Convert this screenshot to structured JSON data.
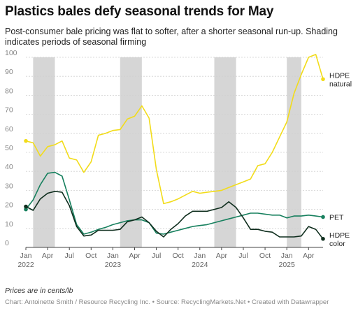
{
  "title": "Plastics bales defy seasonal trends for May",
  "subtitle": "Post-consumer bale pricing was flat to softer, after a shorter seasonal run-up. Shading indicates periods of seasonal firming",
  "note": "Prices are in cents/lb",
  "source": "Chart: Antoinette Smith / Resource Recycling Inc. • Source: RecyclingMarkets.Net • Created with Datawrapper",
  "chart_data": {
    "type": "line",
    "ylim": [
      0,
      100
    ],
    "yticks": [
      0,
      10,
      20,
      30,
      40,
      50,
      60,
      70,
      80,
      90,
      100
    ],
    "xlim": [
      "2022-01",
      "2025-05"
    ],
    "xticks": [
      {
        "date": "2022-01",
        "label": "Jan",
        "year": "2022"
      },
      {
        "date": "2022-04",
        "label": "Apr",
        "year": ""
      },
      {
        "date": "2022-07",
        "label": "Jul",
        "year": ""
      },
      {
        "date": "2022-10",
        "label": "Oct",
        "year": ""
      },
      {
        "date": "2023-01",
        "label": "Jan",
        "year": "2023"
      },
      {
        "date": "2023-04",
        "label": "Apr",
        "year": ""
      },
      {
        "date": "2023-07",
        "label": "Jul",
        "year": ""
      },
      {
        "date": "2023-10",
        "label": "Oct",
        "year": ""
      },
      {
        "date": "2024-01",
        "label": "Jan",
        "year": "2024"
      },
      {
        "date": "2024-04",
        "label": "Apr",
        "year": ""
      },
      {
        "date": "2024-07",
        "label": "Jul",
        "year": ""
      },
      {
        "date": "2024-10",
        "label": "Oct",
        "year": ""
      },
      {
        "date": "2025-01",
        "label": "Jan",
        "year": "2025"
      },
      {
        "date": "2025-04",
        "label": "Apr",
        "year": ""
      }
    ],
    "shaded_periods": [
      [
        "2022-02",
        "2022-05"
      ],
      [
        "2023-02",
        "2023-05"
      ],
      [
        "2024-03",
        "2024-06"
      ],
      [
        "2025-01",
        "2025-03"
      ]
    ],
    "grid": true,
    "series": [
      {
        "name": "HDPE natural",
        "label_lines": [
          "HDPE",
          "natural"
        ],
        "color": "#f2dc1a",
        "points": [
          [
            "2022-01",
            56
          ],
          [
            "2022-02",
            55
          ],
          [
            "2022-03",
            48
          ],
          [
            "2022-04",
            53
          ],
          [
            "2022-05",
            54
          ],
          [
            "2022-06",
            56
          ],
          [
            "2022-07",
            47
          ],
          [
            "2022-08",
            46
          ],
          [
            "2022-09",
            39.5
          ],
          [
            "2022-10",
            45
          ],
          [
            "2022-11",
            59
          ],
          [
            "2022-12",
            60
          ],
          [
            "2023-01",
            61.5
          ],
          [
            "2023-02",
            62
          ],
          [
            "2023-03",
            67.5
          ],
          [
            "2023-04",
            69
          ],
          [
            "2023-05",
            74.5
          ],
          [
            "2023-06",
            68
          ],
          [
            "2023-07",
            41
          ],
          [
            "2023-08",
            23
          ],
          [
            "2023-09",
            24
          ],
          [
            "2023-10",
            25.5
          ],
          [
            "2023-11",
            27.5
          ],
          [
            "2023-12",
            29.5
          ],
          [
            "2024-01",
            28.5
          ],
          [
            "2024-02",
            29
          ],
          [
            "2024-03",
            29.5
          ],
          [
            "2024-04",
            30
          ],
          [
            "2024-05",
            31.5
          ],
          [
            "2024-06",
            33
          ],
          [
            "2024-07",
            34.5
          ],
          [
            "2024-08",
            36
          ],
          [
            "2024-09",
            43
          ],
          [
            "2024-10",
            44
          ],
          [
            "2024-11",
            50
          ],
          [
            "2024-12",
            58
          ],
          [
            "2025-01",
            66
          ],
          [
            "2025-02",
            81
          ],
          [
            "2025-03",
            91
          ],
          [
            "2025-04",
            100
          ],
          [
            "2025-05",
            101.5
          ],
          [
            "2025-06",
            88.5
          ]
        ]
      },
      {
        "name": "PET",
        "label_lines": [
          "PET"
        ],
        "color": "#17805e",
        "points": [
          [
            "2022-01",
            20
          ],
          [
            "2022-02",
            25
          ],
          [
            "2022-03",
            33
          ],
          [
            "2022-04",
            39
          ],
          [
            "2022-05",
            39.5
          ],
          [
            "2022-06",
            37.5
          ],
          [
            "2022-07",
            25
          ],
          [
            "2022-08",
            12
          ],
          [
            "2022-09",
            7
          ],
          [
            "2022-10",
            8
          ],
          [
            "2022-11",
            9.5
          ],
          [
            "2022-12",
            10.5
          ],
          [
            "2023-01",
            12
          ],
          [
            "2023-02",
            13
          ],
          [
            "2023-03",
            14
          ],
          [
            "2023-04",
            14.5
          ],
          [
            "2023-05",
            14.5
          ],
          [
            "2023-06",
            13
          ],
          [
            "2023-07",
            7.5
          ],
          [
            "2023-08",
            7
          ],
          [
            "2023-09",
            8
          ],
          [
            "2023-10",
            9
          ],
          [
            "2023-11",
            10
          ],
          [
            "2023-12",
            11
          ],
          [
            "2024-01",
            11.5
          ],
          [
            "2024-02",
            12
          ],
          [
            "2024-03",
            13
          ],
          [
            "2024-04",
            14
          ],
          [
            "2024-05",
            15
          ],
          [
            "2024-06",
            16
          ],
          [
            "2024-07",
            17
          ],
          [
            "2024-08",
            18
          ],
          [
            "2024-09",
            18
          ],
          [
            "2024-10",
            17.5
          ],
          [
            "2024-11",
            17
          ],
          [
            "2024-12",
            17
          ],
          [
            "2025-01",
            15.5
          ],
          [
            "2025-02",
            16.5
          ],
          [
            "2025-03",
            16.5
          ],
          [
            "2025-04",
            17
          ],
          [
            "2025-05",
            16.5
          ],
          [
            "2025-06",
            16
          ]
        ]
      },
      {
        "name": "HDPE color",
        "label_lines": [
          "HDPE",
          "color"
        ],
        "color": "#0f2e1e",
        "points": [
          [
            "2022-01",
            21.5
          ],
          [
            "2022-02",
            19.5
          ],
          [
            "2022-03",
            25.5
          ],
          [
            "2022-04",
            28.5
          ],
          [
            "2022-05",
            29.5
          ],
          [
            "2022-06",
            29
          ],
          [
            "2022-07",
            22
          ],
          [
            "2022-08",
            11
          ],
          [
            "2022-09",
            6
          ],
          [
            "2022-10",
            6.5
          ],
          [
            "2022-11",
            9
          ],
          [
            "2022-12",
            9
          ],
          [
            "2023-01",
            9
          ],
          [
            "2023-02",
            9.5
          ],
          [
            "2023-03",
            13.5
          ],
          [
            "2023-04",
            14.5
          ],
          [
            "2023-05",
            16
          ],
          [
            "2023-06",
            13
          ],
          [
            "2023-07",
            8.5
          ],
          [
            "2023-08",
            5.5
          ],
          [
            "2023-09",
            9.5
          ],
          [
            "2023-10",
            12.5
          ],
          [
            "2023-11",
            16.5
          ],
          [
            "2023-12",
            19
          ],
          [
            "2024-01",
            19
          ],
          [
            "2024-02",
            19
          ],
          [
            "2024-03",
            20
          ],
          [
            "2024-04",
            21
          ],
          [
            "2024-05",
            24
          ],
          [
            "2024-06",
            21
          ],
          [
            "2024-07",
            15.5
          ],
          [
            "2024-08",
            9.5
          ],
          [
            "2024-09",
            9.5
          ],
          [
            "2024-10",
            8.5
          ],
          [
            "2024-11",
            8
          ],
          [
            "2024-12",
            5.5
          ],
          [
            "2025-01",
            5.5
          ],
          [
            "2025-02",
            5.5
          ],
          [
            "2025-03",
            6
          ],
          [
            "2025-04",
            11
          ],
          [
            "2025-05",
            9.5
          ],
          [
            "2025-06",
            4.5
          ]
        ]
      }
    ]
  }
}
